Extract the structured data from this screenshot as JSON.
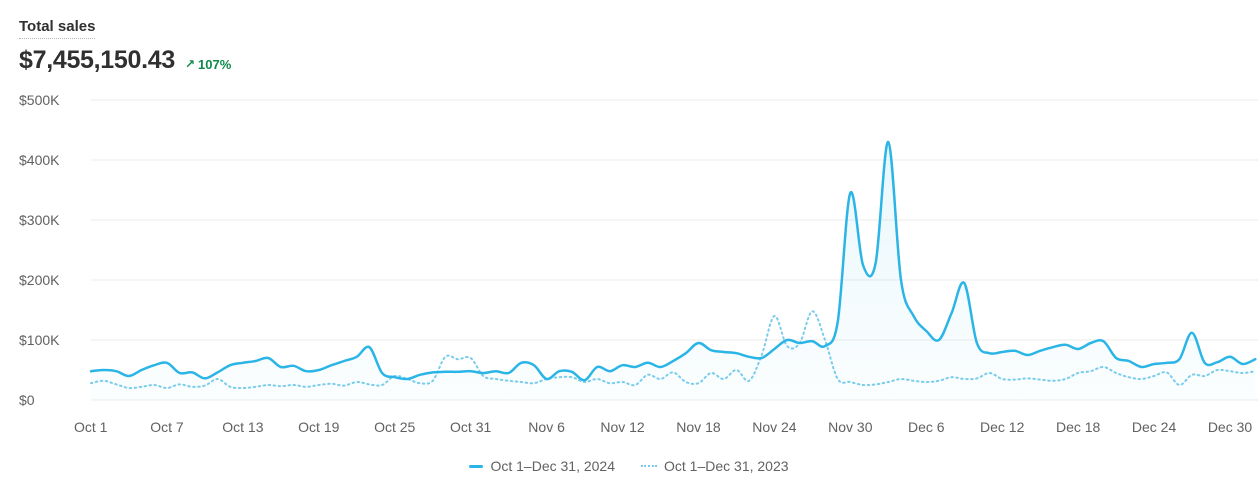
{
  "header": {
    "title": "Total sales",
    "value": "$7,455,150.43",
    "change": "107%",
    "change_icon": "arrow-up-right-icon"
  },
  "colors": {
    "current": "#2bb5e6",
    "previous": "#79cdea",
    "positive": "#0c8a4b",
    "grid": "#ebebeb"
  },
  "chart_data": {
    "type": "line",
    "title": "Total sales",
    "xlabel": "",
    "ylabel": "",
    "ylim": [
      0,
      500000
    ],
    "y_ticks": [
      0,
      100000,
      200000,
      300000,
      400000,
      500000
    ],
    "y_tick_labels": [
      "$0",
      "$100K",
      "$200K",
      "$300K",
      "$400K",
      "$500K"
    ],
    "x_tick_labels": [
      "Oct 1",
      "Oct 7",
      "Oct 13",
      "Oct 19",
      "Oct 25",
      "Oct 31",
      "Nov 6",
      "Nov 12",
      "Nov 18",
      "Nov 24",
      "Nov 30",
      "Dec 6",
      "Dec 12",
      "Dec 18",
      "Dec 24",
      "Dec 30"
    ],
    "x_tick_days": [
      0,
      6,
      12,
      18,
      24,
      30,
      36,
      42,
      48,
      54,
      60,
      66,
      72,
      78,
      84,
      90
    ],
    "grid": true,
    "legend_position": "bottom",
    "series": [
      {
        "name": "Oct 1–Dec 31, 2024",
        "style": "solid",
        "values": [
          48000,
          50000,
          48000,
          40000,
          50000,
          58000,
          62000,
          45000,
          46000,
          36000,
          46000,
          58000,
          62000,
          65000,
          70000,
          55000,
          57000,
          48000,
          50000,
          58000,
          65000,
          72000,
          88000,
          45000,
          38000,
          35000,
          42000,
          46000,
          47000,
          47000,
          48000,
          45000,
          48000,
          45000,
          62000,
          58000,
          35000,
          48000,
          47000,
          33000,
          55000,
          48000,
          58000,
          55000,
          62000,
          55000,
          65000,
          78000,
          95000,
          83000,
          80000,
          78000,
          72000,
          70000,
          85000,
          100000,
          95000,
          98000,
          90000,
          130000,
          345000,
          225000,
          228000,
          430000,
          200000,
          140000,
          115000,
          100000,
          145000,
          195000,
          95000,
          78000,
          80000,
          82000,
          75000,
          82000,
          88000,
          92000,
          85000,
          95000,
          98000,
          70000,
          65000,
          55000,
          60000,
          62000,
          68000,
          112000,
          62000,
          63000,
          72000,
          60000,
          68000
        ]
      },
      {
        "name": "Oct 1–Dec 31, 2023",
        "style": "dotted",
        "values": [
          28000,
          32000,
          26000,
          20000,
          22000,
          25000,
          20000,
          26000,
          22000,
          24000,
          35000,
          22000,
          20000,
          22000,
          25000,
          23000,
          25000,
          22000,
          25000,
          27000,
          24000,
          30000,
          26000,
          25000,
          40000,
          35000,
          28000,
          32000,
          72000,
          68000,
          70000,
          40000,
          35000,
          32000,
          30000,
          28000,
          35000,
          38000,
          38000,
          30000,
          35000,
          28000,
          30000,
          25000,
          42000,
          35000,
          46000,
          30000,
          28000,
          45000,
          35000,
          50000,
          32000,
          75000,
          140000,
          90000,
          95000,
          148000,
          100000,
          35000,
          30000,
          25000,
          26000,
          30000,
          35000,
          32000,
          30000,
          32000,
          38000,
          35000,
          36000,
          45000,
          35000,
          34000,
          36000,
          34000,
          32000,
          35000,
          45000,
          48000,
          55000,
          45000,
          38000,
          35000,
          40000,
          46000,
          25000,
          42000,
          40000,
          50000,
          48000,
          45000,
          48000
        ]
      }
    ]
  },
  "legend": {
    "current": "Oct 1–Dec 31, 2024",
    "previous": "Oct 1–Dec 31, 2023"
  }
}
